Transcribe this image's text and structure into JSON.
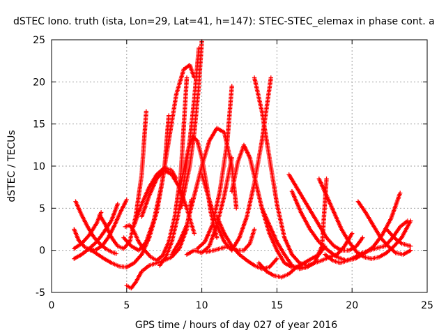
{
  "chart_data": {
    "type": "scatter",
    "title": "dSTEC Iono. truth (ista, Lon=29, Lat=41, h=147): STEC-STEC_elemax in phase cont. a",
    "xlabel": "GPS time / hours of day 027 of year 2016",
    "ylabel": "dSTEC  / TECUs",
    "xlim": [
      0,
      25
    ],
    "ylim": [
      -5,
      25
    ],
    "x_ticks": [
      "0",
      "5",
      "10",
      "15",
      "20",
      "25"
    ],
    "y_ticks": [
      "-5",
      "0",
      "5",
      "10",
      "15",
      "20",
      "25"
    ],
    "grid": true,
    "marker": "+",
    "color": "#ff0000",
    "series": [
      {
        "x": [
          1.5,
          1.8,
          2.2,
          2.6,
          3.0,
          3.4,
          3.8,
          4.2,
          4.6,
          5.0
        ],
        "y": [
          2.5,
          1.2,
          0.4,
          0.0,
          0.1,
          0.6,
          1.6,
          3.0,
          4.6,
          6.0
        ]
      },
      {
        "x": [
          1.6,
          2.0,
          2.4,
          2.8,
          3.2,
          3.6,
          4.0,
          4.3
        ],
        "y": [
          5.8,
          4.2,
          2.8,
          1.6,
          0.8,
          0.2,
          -0.2,
          -0.4
        ]
      },
      {
        "x": [
          1.5,
          2.0,
          2.5,
          3.0,
          3.5,
          4.0,
          4.4
        ],
        "y": [
          -1.0,
          -0.5,
          0.2,
          1.0,
          2.2,
          3.6,
          5.5
        ]
      },
      {
        "x": [
          1.5,
          2.0,
          2.5,
          3.0,
          3.3
        ],
        "y": [
          0.2,
          0.8,
          1.8,
          3.2,
          4.5
        ]
      },
      {
        "x": [
          3.2,
          3.6,
          4.0,
          4.4,
          4.8,
          5.2,
          5.6,
          6.0,
          6.3
        ],
        "y": [
          4.2,
          3.0,
          1.5,
          0.5,
          0.2,
          1.0,
          4.0,
          9.0,
          16.5
        ]
      },
      {
        "x": [
          2.5,
          3.0,
          3.5,
          4.0,
          4.5,
          5.0,
          5.5,
          6.0,
          6.5,
          7.0,
          7.5,
          7.8
        ],
        "y": [
          0.2,
          -0.4,
          -1.0,
          -1.5,
          -1.9,
          -2.0,
          -1.5,
          -0.5,
          1.5,
          4.5,
          9.5,
          16.0
        ]
      },
      {
        "x": [
          4.9,
          5.2,
          5.5,
          5.8,
          6.2,
          6.6,
          7.0,
          7.4,
          7.8,
          8.2,
          8.6,
          9.0
        ],
        "y": [
          2.8,
          3.0,
          2.2,
          1.0,
          0.0,
          -0.8,
          -1.2,
          -0.6,
          1.0,
          4.0,
          9.0,
          20.5
        ]
      },
      {
        "x": [
          5.0,
          5.3,
          5.6,
          6.0,
          6.5,
          7.0,
          7.5,
          8.0,
          8.5,
          9.0,
          9.3
        ],
        "y": [
          -4.2,
          -4.5,
          -3.8,
          -2.5,
          -1.8,
          -1.5,
          -1.2,
          -0.8,
          0.2,
          2.5,
          6.0
        ]
      },
      {
        "x": [
          4.8,
          5.3,
          5.8,
          6.3,
          6.8,
          7.3,
          7.8,
          8.3,
          8.8,
          9.2,
          9.5
        ],
        "y": [
          1.5,
          0.5,
          0.0,
          1.0,
          3.5,
          7.5,
          13.0,
          18.5,
          21.5,
          22.0,
          20.5
        ]
      },
      {
        "x": [
          5.5,
          6.0,
          6.5,
          7.0,
          7.5,
          8.0,
          8.3
        ],
        "y": [
          3.0,
          5.5,
          7.5,
          9.0,
          9.8,
          9.5,
          8.5
        ]
      },
      {
        "x": [
          6.0,
          6.5,
          7.0,
          7.5,
          8.0,
          8.5,
          9.0,
          9.5
        ],
        "y": [
          4.0,
          6.5,
          8.5,
          9.5,
          9.0,
          7.5,
          5.0,
          2.0
        ]
      },
      {
        "x": [
          7.2,
          7.6,
          8.0,
          8.4,
          8.8,
          9.2,
          9.5,
          9.8
        ],
        "y": [
          -1.8,
          -0.8,
          1.0,
          4.0,
          8.0,
          13.0,
          18.0,
          24.0
        ]
      },
      {
        "x": [
          8.0,
          8.5,
          9.0,
          9.5,
          10.0,
          10.5,
          11.0,
          11.5,
          12.0,
          12.3
        ],
        "y": [
          -0.5,
          1.0,
          3.0,
          6.5,
          10.0,
          13.0,
          14.5,
          14.0,
          10.0,
          5.0
        ]
      },
      {
        "x": [
          8.5,
          8.8,
          9.1,
          9.4,
          9.7,
          10.0,
          10.3,
          10.6,
          11.0
        ],
        "y": [
          7.0,
          9.5,
          12.0,
          13.5,
          13.0,
          11.0,
          8.0,
          4.5,
          1.5
        ]
      },
      {
        "x": [
          8.6,
          8.9,
          9.2,
          9.5,
          9.8,
          10.0
        ],
        "y": [
          5.0,
          7.5,
          10.0,
          14.0,
          19.5,
          24.8
        ]
      },
      {
        "x": [
          9.0,
          9.5,
          10.0,
          10.5,
          11.0,
          11.5,
          12.0
        ],
        "y": [
          -0.5,
          0.0,
          -0.3,
          0.5,
          3.0,
          6.5,
          11.0
        ]
      },
      {
        "x": [
          9.7,
          10.2,
          10.7,
          11.2,
          11.7,
          12.0
        ],
        "y": [
          0.2,
          1.0,
          3.0,
          7.0,
          13.0,
          19.5
        ]
      },
      {
        "x": [
          10.0,
          10.5,
          11.0,
          11.5,
          12.0,
          12.5,
          13.0,
          13.5,
          14.0,
          14.6
        ],
        "y": [
          9.0,
          6.0,
          3.0,
          1.0,
          0.0,
          1.5,
          4.0,
          8.0,
          13.0,
          20.5
        ]
      },
      {
        "x": [
          10.3,
          10.8,
          11.2,
          11.6,
          12.0,
          12.4,
          12.8,
          13.2,
          13.5
        ],
        "y": [
          -0.2,
          0.0,
          0.2,
          0.4,
          0.3,
          0.0,
          0.0,
          0.8,
          2.5
        ]
      },
      {
        "x": [
          11.0,
          11.5,
          12.0,
          12.5,
          13.0,
          13.5,
          14.0,
          14.5,
          15.0
        ],
        "y": [
          4.0,
          2.0,
          0.5,
          -0.5,
          -1.2,
          -1.8,
          -2.2,
          -2.0,
          -1.0
        ]
      },
      {
        "x": [
          12.0,
          12.4,
          12.8,
          13.2,
          13.6,
          14.0,
          14.5,
          15.0,
          15.5,
          16.0,
          16.5,
          17.0
        ],
        "y": [
          7.0,
          10.5,
          12.5,
          11.0,
          8.0,
          5.0,
          2.0,
          0.0,
          -1.5,
          -2.0,
          -2.0,
          -2.0
        ]
      },
      {
        "x": [
          13.5,
          14.0,
          14.5,
          15.0,
          15.5,
          16.0,
          16.5,
          17.0,
          17.5,
          18.0,
          18.3
        ],
        "y": [
          20.5,
          16.5,
          11.0,
          5.5,
          1.5,
          -0.5,
          -1.5,
          -1.8,
          -1.5,
          0.5,
          8.5
        ]
      },
      {
        "x": [
          14.0,
          14.5,
          15.0,
          15.5,
          16.0,
          16.5,
          17.0,
          17.5,
          18.0,
          18.5,
          19.0,
          19.5,
          20.0
        ],
        "y": [
          5.0,
          3.0,
          1.0,
          -0.5,
          -1.8,
          -2.2,
          -2.0,
          -1.5,
          -1.2,
          -0.8,
          -0.5,
          0.5,
          2.0
        ]
      },
      {
        "x": [
          13.8,
          14.3,
          14.8,
          15.3,
          15.8,
          16.3,
          16.8,
          17.3,
          17.8,
          18.2
        ],
        "y": [
          -1.5,
          -2.5,
          -3.0,
          -3.2,
          -2.8,
          -2.0,
          -1.5,
          -1.0,
          -0.5,
          0.5
        ]
      },
      {
        "x": [
          15.8,
          16.3,
          16.8,
          17.3,
          17.8,
          18.3,
          18.8,
          19.3,
          19.8,
          20.3,
          20.7
        ],
        "y": [
          9.0,
          7.5,
          6.0,
          4.5,
          3.0,
          1.5,
          0.5,
          0.0,
          0.0,
          0.5,
          1.5
        ]
      },
      {
        "x": [
          16.0,
          16.6,
          17.2,
          17.8,
          18.4,
          19.0,
          19.6,
          20.2,
          20.8,
          21.4,
          22.0,
          22.6,
          23.2
        ],
        "y": [
          7.0,
          4.5,
          2.5,
          1.0,
          0.0,
          -0.8,
          -1.2,
          -1.0,
          -0.4,
          0.4,
          1.8,
          3.8,
          6.8
        ]
      },
      {
        "x": [
          17.8,
          18.3,
          18.8,
          19.3,
          19.8,
          20.3,
          20.8,
          21.3,
          21.8,
          22.3,
          22.8,
          23.3,
          23.9
        ],
        "y": [
          8.5,
          6.5,
          4.5,
          2.5,
          1.0,
          -0.2,
          -0.8,
          -1.0,
          -0.8,
          -0.3,
          0.5,
          1.5,
          3.5
        ]
      },
      {
        "x": [
          18.2,
          18.7,
          19.2,
          19.7,
          20.2,
          20.7,
          21.2,
          21.7,
          22.2,
          22.7,
          23.2,
          23.7
        ],
        "y": [
          -0.5,
          -1.2,
          -1.5,
          -1.2,
          -0.8,
          -0.3,
          0.0,
          0.3,
          0.5,
          1.5,
          2.8,
          3.5
        ]
      },
      {
        "x": [
          20.4,
          20.9,
          21.4,
          21.9,
          22.4,
          22.9,
          23.4,
          23.9
        ],
        "y": [
          5.8,
          4.5,
          3.0,
          1.5,
          0.5,
          -0.3,
          -0.5,
          0.0
        ]
      },
      {
        "x": [
          22.3,
          22.8,
          23.3,
          23.9
        ],
        "y": [
          2.5,
          1.5,
          0.8,
          0.5
        ]
      }
    ]
  }
}
